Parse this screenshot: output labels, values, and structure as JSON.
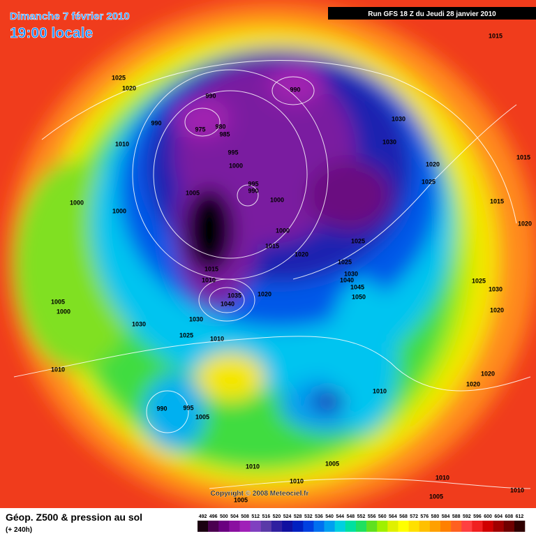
{
  "header": {
    "date": "Dimanche 7 février 2010",
    "time": "19:00 locale",
    "run": "Run GFS 18 Z du Jeudi 28 janvier 2010"
  },
  "map": {
    "pressure_labels": [
      1015,
      1025,
      1020,
      990,
      990,
      990,
      980,
      975,
      985,
      1030,
      1010,
      1030,
      995,
      1000,
      1020,
      1015,
      995,
      990,
      1005,
      1025,
      1000,
      1000,
      1015,
      1000,
      1020,
      1000,
      1015,
      1025,
      1020,
      1025,
      1015,
      1030,
      1010,
      1040,
      1045,
      1025,
      1030,
      1035,
      1020,
      1050,
      1005,
      1040,
      1000,
      1020,
      1030,
      1030,
      1025,
      1010,
      1010,
      1020,
      1010,
      1020,
      990,
      995,
      1005,
      1010,
      1005,
      1010,
      1010,
      1005,
      1005,
      1010
    ]
  },
  "footer": {
    "title": "Géop. Z500 & pression au sol",
    "lead": "(+ 240h)",
    "copyright": "Copyright © 2008 Meteociel.fr"
  },
  "legend": {
    "levels": [
      492,
      496,
      500,
      504,
      508,
      512,
      516,
      520,
      524,
      528,
      532,
      536,
      540,
      544,
      548,
      552,
      556,
      560,
      564,
      568,
      572,
      576,
      580,
      584,
      588,
      592,
      596,
      600,
      604,
      608,
      612
    ],
    "colors": [
      "#1a0010",
      "#4b0050",
      "#6a0080",
      "#8a10a0",
      "#a020b8",
      "#8040c0",
      "#5a3aa8",
      "#3020a0",
      "#1010a0",
      "#0020c0",
      "#0040e0",
      "#0070f0",
      "#00a0f0",
      "#00d0e0",
      "#00e0a0",
      "#20e060",
      "#60e020",
      "#a0f000",
      "#e0f000",
      "#ffff00",
      "#ffe000",
      "#ffc000",
      "#ffa000",
      "#ff8000",
      "#ff6020",
      "#ff4040",
      "#f02020",
      "#d00000",
      "#a00000",
      "#700000",
      "#300000"
    ]
  }
}
